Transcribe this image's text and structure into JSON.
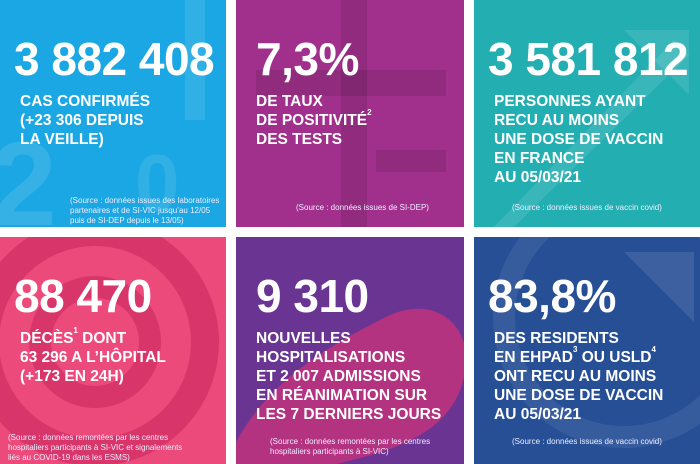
{
  "tiles": [
    {
      "number": "3 882 408",
      "lines": [
        "CAS CONFIRMÉS",
        "(+23 306 DEPUIS",
        "LA VEILLE)"
      ],
      "source": [
        "(Source : données issues des laboratoires",
        "partenaires et de SI-VIC jusqu’au 12/05",
        "puis de SI-DEP depuis le 13/05)"
      ],
      "color": "#1aa7e3"
    },
    {
      "number": "7,3%",
      "line1": "DE TAUX",
      "line2_text": "DE POSITIVITÉ",
      "line2_sup": "2",
      "line3": "DES TESTS",
      "source": [
        "(Source : données issues de SI-DEP)"
      ],
      "color": "#a1308d"
    },
    {
      "number": "3 581 812",
      "lines": [
        "PERSONNES AYANT",
        "RECU AU MOINS",
        "UNE DOSE DE VACCIN",
        "EN FRANCE",
        "AU 05/03/21"
      ],
      "source": [
        "(Source : données issues de vaccin covid)"
      ],
      "color": "#23aeb2"
    },
    {
      "number": "88 470",
      "line1_text": "DÉCÈS",
      "line1_sup": "1",
      "line1_rest": " DONT",
      "line2": "63 296 A L’HÔPITAL",
      "line3": "(+173 EN 24H)",
      "source": [
        "(Source : données remontées par les centres",
        "hospitaliers participants à SI-VIC et signalements",
        "liés au COVID-19 dans les ESMS)"
      ],
      "color": "#ec4a7a"
    },
    {
      "number": "9 310",
      "lines": [
        "NOUVELLES",
        "HOSPITALISATIONS",
        "ET 2 007 ADMISSIONS",
        "EN RÉANIMATION SUR",
        "LES 7 DERNIERS JOURS"
      ],
      "source": [
        "(Source : données remontées par les centres",
        "hospitaliers participants à SI-VIC)"
      ],
      "color": "#6a3592"
    },
    {
      "number": "83,8%",
      "line1": "DES RESIDENTS",
      "line2_a": "EN EHPAD",
      "line2_sup_a": "3",
      "line2_b": " OU USLD",
      "line2_sup_b": "4",
      "line3": "ONT RECU AU MOINS",
      "line4": "UNE DOSE DE VACCIN",
      "line5": "AU 05/03/21",
      "source": [
        "(Source : données issues de vaccin covid)"
      ],
      "color": "#264f96"
    }
  ]
}
